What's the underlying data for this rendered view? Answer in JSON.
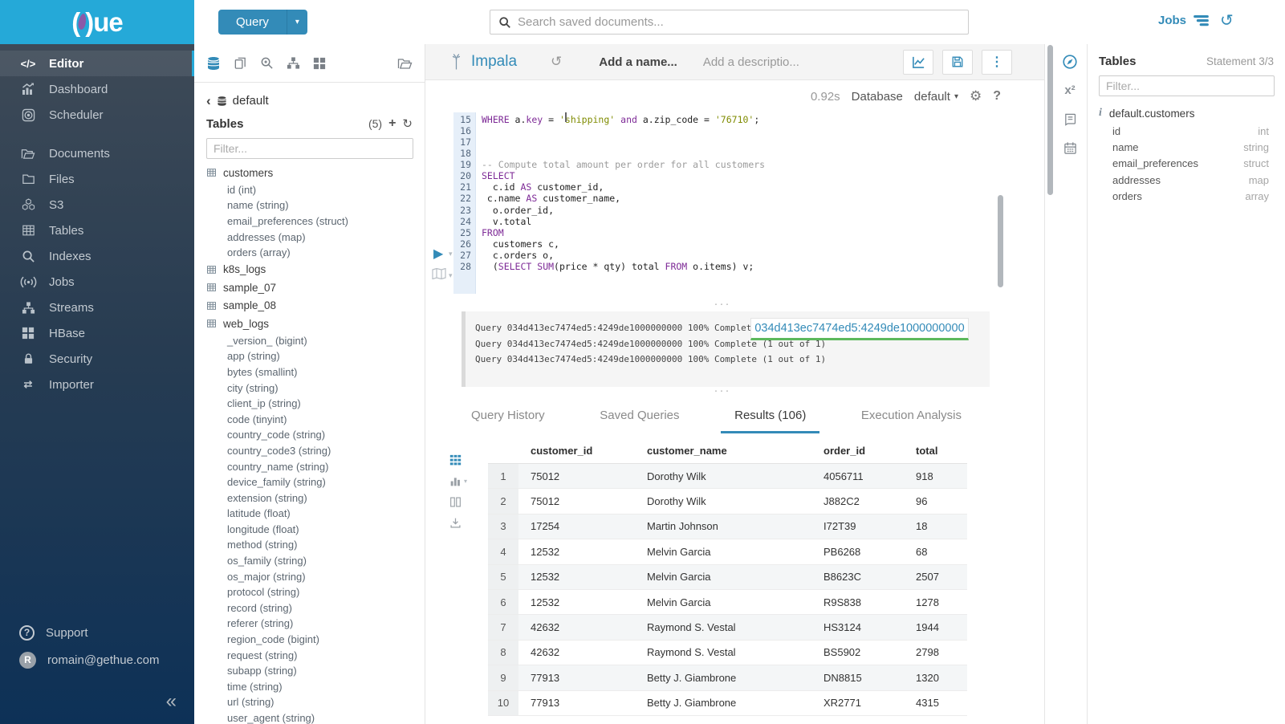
{
  "colors": {
    "brand_cyan": "#25a9d8",
    "accent_blue": "#338bb8",
    "logo_purple": "#8b5aa8",
    "keyword": "#7d2996",
    "string": "#7f8b00",
    "success_green": "#5cb85c"
  },
  "topbar": {
    "logo": {
      "open": "(",
      "close": ")",
      "text": "ue"
    },
    "query_label": "Query",
    "search_placeholder": "Search saved documents...",
    "jobs_label": "Jobs"
  },
  "sidebar": {
    "items": [
      {
        "label": "Editor",
        "icon": "code",
        "active": true,
        "gap": false
      },
      {
        "label": "Dashboard",
        "icon": "dashboard",
        "active": false,
        "gap": false
      },
      {
        "label": "Scheduler",
        "icon": "scheduler",
        "active": false,
        "gap": false
      },
      {
        "label": "Documents",
        "icon": "documents",
        "active": false,
        "gap": true
      },
      {
        "label": "Files",
        "icon": "folder",
        "active": false,
        "gap": false
      },
      {
        "label": "S3",
        "icon": "cubes",
        "active": false,
        "gap": false
      },
      {
        "label": "Tables",
        "icon": "table-grid",
        "active": false,
        "gap": false
      },
      {
        "label": "Indexes",
        "icon": "magnifier",
        "active": false,
        "gap": false
      },
      {
        "label": "Jobs",
        "icon": "broadcast",
        "active": false,
        "gap": false
      },
      {
        "label": "Streams",
        "icon": "sitemap",
        "active": false,
        "gap": false
      },
      {
        "label": "HBase",
        "icon": "grid4",
        "active": false,
        "gap": false
      },
      {
        "label": "Security",
        "icon": "lock",
        "active": false,
        "gap": false
      },
      {
        "label": "Importer",
        "icon": "transfer-arrows",
        "active": false,
        "gap": false
      }
    ],
    "support_label": "Support",
    "user_email": "romain@gethue.com",
    "user_initial": "R"
  },
  "assist": {
    "breadcrumb": "default",
    "tables_label": "Tables",
    "tables_count": "(5)",
    "filter_placeholder": "Filter...",
    "tree": [
      {
        "name": "customers",
        "columns": [
          "id (int)",
          "name (string)",
          "email_preferences (struct)",
          "addresses (map)",
          "orders (array)"
        ]
      },
      {
        "name": "k8s_logs",
        "columns": []
      },
      {
        "name": "sample_07",
        "columns": []
      },
      {
        "name": "sample_08",
        "columns": []
      },
      {
        "name": "web_logs",
        "columns": [
          "_version_ (bigint)",
          "app (string)",
          "bytes (smallint)",
          "city (string)",
          "client_ip (string)",
          "code (tinyint)",
          "country_code (string)",
          "country_code3 (string)",
          "country_name (string)",
          "device_family (string)",
          "extension (string)",
          "latitude (float)",
          "longitude (float)",
          "method (string)",
          "os_family (string)",
          "os_major (string)",
          "protocol (string)",
          "record (string)",
          "referer (string)",
          "region_code (bigint)",
          "request (string)",
          "subapp (string)",
          "time (string)",
          "url (string)",
          "user_agent (string)"
        ]
      }
    ]
  },
  "editor": {
    "engine": "Impala",
    "name_placeholder": "Add a name...",
    "desc_placeholder": "Add a descriptio...",
    "exec_time": "0.92s",
    "database_label": "Database",
    "database_value": "default",
    "code_lines": [
      {
        "n": 15,
        "seg": [
          [
            "kw",
            "WHERE"
          ],
          [
            "txt",
            " a."
          ],
          [
            "kw",
            "key"
          ],
          [
            "txt",
            " = "
          ],
          [
            "str",
            "'shipping'"
          ],
          [
            "txt",
            " "
          ],
          [
            "kw",
            "and"
          ],
          [
            "txt",
            " a.zip_code = "
          ],
          [
            "str",
            "'76710'"
          ],
          [
            "txt",
            ";"
          ]
        ]
      },
      {
        "n": 16,
        "seg": []
      },
      {
        "n": 17,
        "seg": []
      },
      {
        "n": 18,
        "seg": []
      },
      {
        "n": 19,
        "seg": [
          [
            "com",
            "-- Compute total amount per order for all customers"
          ]
        ]
      },
      {
        "n": 20,
        "seg": [
          [
            "kw",
            "SELECT"
          ]
        ]
      },
      {
        "n": 21,
        "seg": [
          [
            "txt",
            "  c.id "
          ],
          [
            "kw",
            "AS"
          ],
          [
            "txt",
            " customer_id,"
          ]
        ]
      },
      {
        "n": 22,
        "seg": [
          [
            "txt",
            " c.name "
          ],
          [
            "kw",
            "AS"
          ],
          [
            "txt",
            " customer_name,"
          ]
        ]
      },
      {
        "n": 23,
        "seg": [
          [
            "txt",
            "  o.order_id,"
          ]
        ]
      },
      {
        "n": 24,
        "seg": [
          [
            "txt",
            "  v.total"
          ]
        ]
      },
      {
        "n": 25,
        "seg": [
          [
            "kw",
            "FROM"
          ]
        ]
      },
      {
        "n": 26,
        "seg": [
          [
            "txt",
            "  customers c,"
          ]
        ]
      },
      {
        "n": 27,
        "seg": [
          [
            "txt",
            "  c.orders o,"
          ]
        ]
      },
      {
        "n": 28,
        "seg": [
          [
            "txt",
            "  ("
          ],
          [
            "kw",
            "SELECT"
          ],
          [
            "txt",
            " "
          ],
          [
            "kw",
            "SUM"
          ],
          [
            "txt",
            "(price * qty) total "
          ],
          [
            "kw",
            "FROM"
          ],
          [
            "txt",
            " o.items) v;"
          ]
        ]
      }
    ]
  },
  "log": {
    "lines": [
      "Query 034d413ec7474ed5:4249de1000000000 100% Complete (1 out of 1)",
      "Query 034d413ec7474ed5:4249de1000000000 100% Complete (1 out of 1)",
      "Query 034d413ec7474ed5:4249de1000000000 100% Complete (1 out of 1)"
    ],
    "tooltip": "034d413ec7474ed5:4249de1000000000"
  },
  "tabs": [
    {
      "label": "Query History",
      "active": false
    },
    {
      "label": "Saved Queries",
      "active": false
    },
    {
      "label": "Results (106)",
      "active": true
    },
    {
      "label": "Execution Analysis",
      "active": false
    }
  ],
  "results": {
    "columns": [
      "customer_id",
      "customer_name",
      "order_id",
      "total"
    ],
    "rows": [
      [
        "1",
        "75012",
        "Dorothy Wilk",
        "4056711",
        "918"
      ],
      [
        "2",
        "75012",
        "Dorothy Wilk",
        "J882C2",
        "96"
      ],
      [
        "3",
        "17254",
        "Martin Johnson",
        "I72T39",
        "18"
      ],
      [
        "4",
        "12532",
        "Melvin Garcia",
        "PB6268",
        "68"
      ],
      [
        "5",
        "12532",
        "Melvin Garcia",
        "B8623C",
        "2507"
      ],
      [
        "6",
        "12532",
        "Melvin Garcia",
        "R9S838",
        "1278"
      ],
      [
        "7",
        "42632",
        "Raymond S. Vestal",
        "HS3124",
        "1944"
      ],
      [
        "8",
        "42632",
        "Raymond S. Vestal",
        "BS5902",
        "2798"
      ],
      [
        "9",
        "77913",
        "Betty J. Giambrone",
        "DN8815",
        "1320"
      ],
      [
        "10",
        "77913",
        "Betty J. Giambrone",
        "XR2771",
        "4315"
      ]
    ]
  },
  "right_panel": {
    "title": "Tables",
    "statement": "Statement 3/3",
    "filter_placeholder": "Filter...",
    "info_marker": "i",
    "table_name": "default.customers",
    "columns": [
      {
        "name": "id",
        "type": "int"
      },
      {
        "name": "name",
        "type": "string"
      },
      {
        "name": "email_preferences",
        "type": "struct"
      },
      {
        "name": "addresses",
        "type": "map"
      },
      {
        "name": "orders",
        "type": "array"
      }
    ]
  }
}
